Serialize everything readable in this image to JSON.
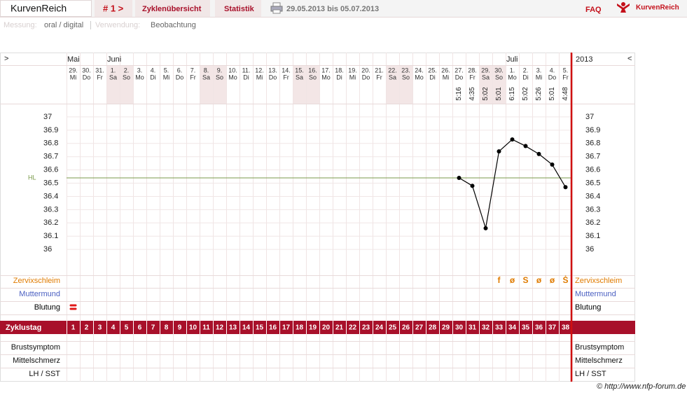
{
  "header": {
    "app_title": "KurvenReich",
    "cycle": "# 1 >",
    "tabs": [
      "Zyklenübersicht",
      "Statistik"
    ],
    "date_range": "29.05.2013 bis 05.07.2013",
    "faq": "FAQ",
    "logo": "KurvenReich"
  },
  "info": {
    "measurement_label": "Messung:",
    "measurement": "oral / digital",
    "usage_label": "Verwendung:",
    "usage": "Beobachtung"
  },
  "chart_data": {
    "type": "line",
    "nav_left": ">",
    "nav_right": "<",
    "year": "2013",
    "months": [
      "Mai",
      null,
      null,
      "Juni",
      null,
      null,
      null,
      null,
      null,
      null,
      null,
      null,
      null,
      null,
      null,
      null,
      null,
      null,
      null,
      null,
      null,
      null,
      null,
      null,
      null,
      null,
      null,
      null,
      null,
      null,
      null,
      null,
      null,
      "Juli",
      null,
      null,
      null,
      null
    ],
    "categories": [
      "29.",
      "30.",
      "31.",
      "1.",
      "2.",
      "3.",
      "4.",
      "5.",
      "6.",
      "7.",
      "8.",
      "9.",
      "10.",
      "11.",
      "12.",
      "13.",
      "14.",
      "15.",
      "16.",
      "17.",
      "18.",
      "19.",
      "20.",
      "21.",
      "22.",
      "23.",
      "24.",
      "25.",
      "26.",
      "27.",
      "28.",
      "29.",
      "30.",
      "1.",
      "2.",
      "3.",
      "4.",
      "5."
    ],
    "weekdays": [
      "Mi",
      "Do",
      "Fr",
      "Sa",
      "So",
      "Mo",
      "Di",
      "Mi",
      "Do",
      "Fr",
      "Sa",
      "So",
      "Mo",
      "Di",
      "Mi",
      "Do",
      "Fr",
      "Sa",
      "So",
      "Mo",
      "Di",
      "Mi",
      "Do",
      "Fr",
      "Sa",
      "So",
      "Mo",
      "Di",
      "Mi",
      "Do",
      "Fr",
      "Sa",
      "So",
      "Mo",
      "Di",
      "Mi",
      "Do",
      "Fr"
    ],
    "shaded_columns": [
      4,
      5,
      11,
      12,
      18,
      19,
      25,
      26,
      32,
      33
    ],
    "times": [
      null,
      null,
      null,
      null,
      null,
      null,
      null,
      null,
      null,
      null,
      null,
      null,
      null,
      null,
      null,
      null,
      null,
      null,
      null,
      null,
      null,
      null,
      null,
      null,
      null,
      null,
      null,
      null,
      null,
      "5:16",
      "4:35",
      "5:02",
      "5:01",
      "6:15",
      "5:02",
      "5:26",
      "5:01",
      "4:48"
    ],
    "values": [
      null,
      null,
      null,
      null,
      null,
      null,
      null,
      null,
      null,
      null,
      null,
      null,
      null,
      null,
      null,
      null,
      null,
      null,
      null,
      null,
      null,
      null,
      null,
      null,
      null,
      null,
      null,
      null,
      null,
      36.54,
      36.48,
      36.16,
      36.74,
      36.83,
      36.78,
      36.72,
      36.64,
      36.47
    ],
    "color": "#000000",
    "ylim": [
      35.8,
      37.1
    ],
    "yticks": [
      36,
      36.1,
      36.2,
      36.3,
      36.4,
      36.5,
      36.6,
      36.7,
      36.8,
      36.9,
      37
    ],
    "grid": true,
    "coverline": 36.54,
    "coverline_label": "HL",
    "coverline_color": "#7a9a4a",
    "top_rows": [
      {
        "label": "Zervixschleim",
        "color": "#e07b00",
        "values": [
          null,
          null,
          null,
          null,
          null,
          null,
          null,
          null,
          null,
          null,
          null,
          null,
          null,
          null,
          null,
          null,
          null,
          null,
          null,
          null,
          null,
          null,
          null,
          null,
          null,
          null,
          null,
          null,
          null,
          null,
          null,
          null,
          "f",
          "ø",
          "S",
          "ø",
          "ø",
          "Ṡ"
        ]
      },
      {
        "label": "Muttermund",
        "color": "#4a5fc1"
      },
      {
        "label": "Blutung",
        "color": "#000000"
      }
    ],
    "bleeding_days": [
      1
    ],
    "cycle_day_label": "Zyklustag",
    "cycle_days": [
      1,
      2,
      3,
      4,
      5,
      6,
      7,
      8,
      9,
      10,
      11,
      12,
      13,
      14,
      15,
      16,
      17,
      18,
      19,
      20,
      21,
      22,
      23,
      24,
      25,
      26,
      27,
      28,
      29,
      30,
      31,
      32,
      33,
      34,
      35,
      36,
      37,
      38
    ],
    "bottom_rows": [
      {
        "label": "Brustsymptom"
      },
      {
        "label": "Mittelschmerz"
      },
      {
        "label": "LH / SST"
      }
    ]
  },
  "footer": "© http://www.nfp-forum.de"
}
